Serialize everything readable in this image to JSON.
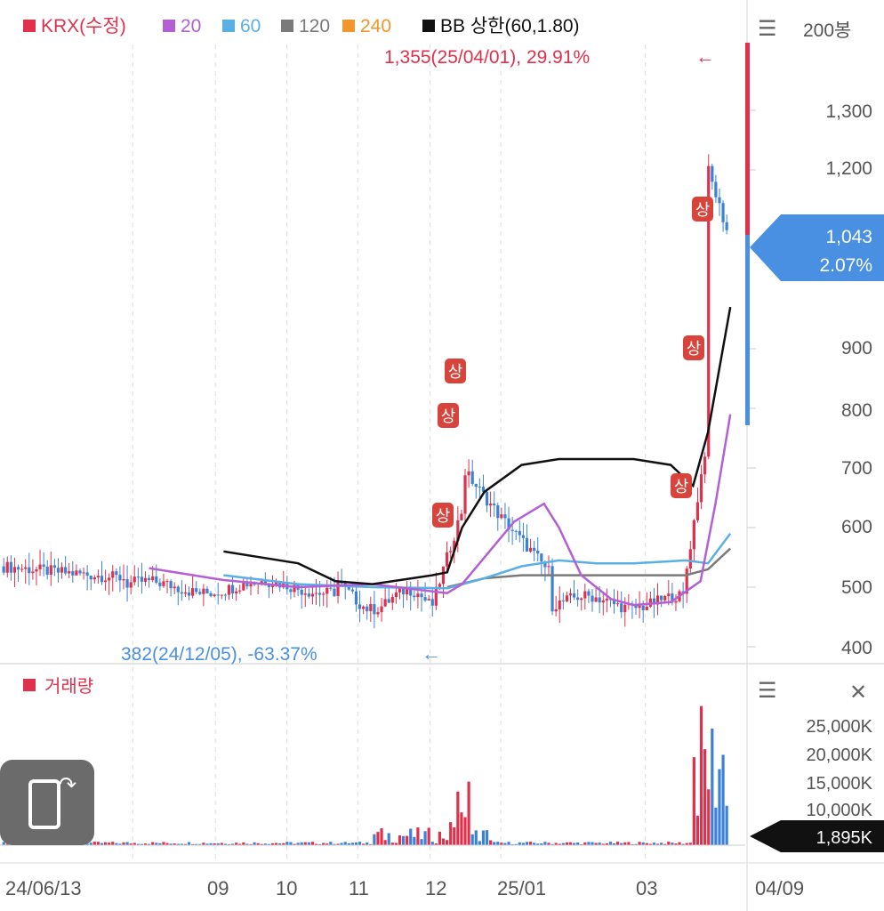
{
  "chart_data": {
    "type": "candlestick",
    "legend": [
      {
        "label": "KRX(수정)",
        "color": "#e0304b"
      },
      {
        "label": "20",
        "color": "#b45fd6"
      },
      {
        "label": "60",
        "color": "#5aafe5"
      },
      {
        "label": "120",
        "color": "#7a7a7a"
      },
      {
        "label": "240",
        "color": "#f0962a"
      },
      {
        "label": "BB 상한(60,1.80)",
        "color": "#111111"
      }
    ],
    "period_label": "200봉",
    "high_marker": "1,355(25/04/01), 29.91%",
    "low_marker": "382(24/12/05), -63.37%",
    "current_price": "1,043",
    "current_change": "2.07%",
    "price_axis": [
      1300,
      1200,
      900,
      800,
      700,
      600,
      500,
      400
    ],
    "price_axis_labels": [
      "1,300",
      "1,200",
      "900",
      "800",
      "700",
      "600",
      "500",
      "400"
    ],
    "ylim": [
      400,
      1400
    ],
    "x_tick_labels": [
      "24/06/13",
      "09",
      "10",
      "11",
      "12",
      "25/01",
      "03",
      "04/09"
    ],
    "upper_limit_label": "상",
    "volume_label": "거래량",
    "volume_axis_labels": [
      "25,000K",
      "20,000K",
      "15,000K",
      "10,000K"
    ],
    "volume_current": "1,895K",
    "moving_averages": {
      "ma20": [
        [
          0.2,
          532
        ],
        [
          0.3,
          512
        ],
        [
          0.4,
          500
        ],
        [
          0.5,
          505
        ],
        [
          0.6,
          490
        ],
        [
          0.62,
          505
        ],
        [
          0.67,
          580
        ],
        [
          0.69,
          610
        ],
        [
          0.73,
          640
        ],
        [
          0.75,
          600
        ],
        [
          0.78,
          520
        ],
        [
          0.82,
          480
        ],
        [
          0.85,
          470
        ],
        [
          0.9,
          475
        ],
        [
          0.94,
          510
        ],
        [
          0.96,
          640
        ],
        [
          0.98,
          790
        ]
      ],
      "ma60": [
        [
          0.3,
          520
        ],
        [
          0.4,
          505
        ],
        [
          0.5,
          500
        ],
        [
          0.6,
          498
        ],
        [
          0.65,
          515
        ],
        [
          0.7,
          535
        ],
        [
          0.75,
          545
        ],
        [
          0.8,
          540
        ],
        [
          0.85,
          540
        ],
        [
          0.92,
          545
        ],
        [
          0.95,
          540
        ],
        [
          0.98,
          590
        ]
      ],
      "ma120": [
        [
          0.6,
          500
        ],
        [
          0.65,
          515
        ],
        [
          0.7,
          520
        ],
        [
          0.8,
          520
        ],
        [
          0.92,
          520
        ],
        [
          0.95,
          530
        ],
        [
          0.98,
          565
        ]
      ],
      "bb_upper": [
        [
          0.3,
          560
        ],
        [
          0.4,
          540
        ],
        [
          0.45,
          510
        ],
        [
          0.5,
          505
        ],
        [
          0.58,
          520
        ],
        [
          0.6,
          525
        ],
        [
          0.62,
          600
        ],
        [
          0.65,
          660
        ],
        [
          0.7,
          705
        ],
        [
          0.75,
          715
        ],
        [
          0.85,
          715
        ],
        [
          0.9,
          705
        ],
        [
          0.93,
          670
        ],
        [
          0.95,
          760
        ],
        [
          0.98,
          970
        ]
      ]
    }
  }
}
